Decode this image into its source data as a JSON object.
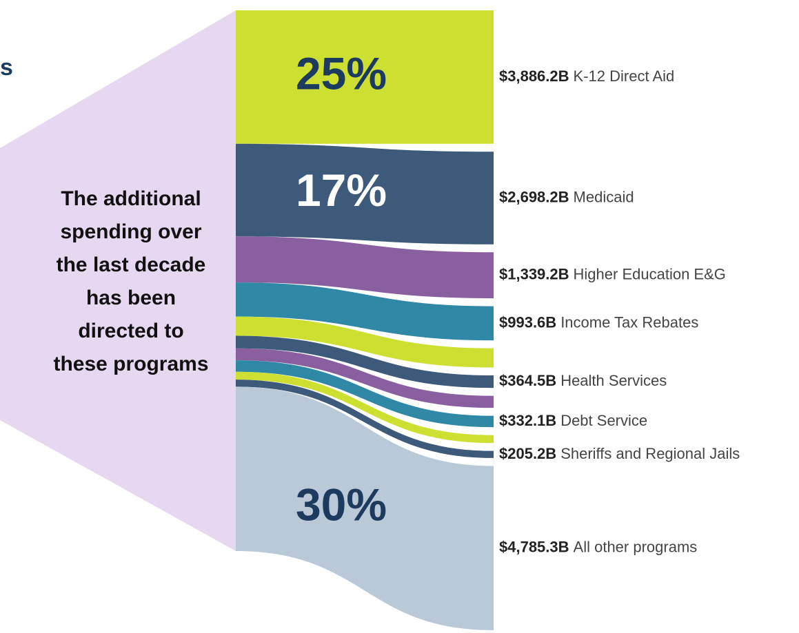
{
  "heading_fragment": "s",
  "side_text": [
    "The additional",
    "spending over",
    "the last decade",
    "has been",
    "directed to",
    "these programs"
  ],
  "chart_data": {
    "type": "sankey",
    "items": [
      {
        "name": "K-12 Direct Aid",
        "value": 3886.2,
        "value_label": "$3,886.2B",
        "color": "#cde031",
        "share": 25,
        "share_label": "25%"
      },
      {
        "name": "Medicaid",
        "value": 2698.2,
        "value_label": "$2,698.2B",
        "color": "#3d5a7a",
        "share": 17,
        "share_label": "17%"
      },
      {
        "name": "Higher Education E&G",
        "value": 1339.2,
        "value_label": "$1,339.2B",
        "color": "#8a5fa0"
      },
      {
        "name": "Income Tax Rebates",
        "value": 993.6,
        "value_label": "$993.6B",
        "color": "#2e88a6"
      },
      {
        "name": null,
        "value": 560,
        "value_label": null,
        "color": "#cde031"
      },
      {
        "name": "Health Services",
        "value": 364.5,
        "value_label": "$364.5B",
        "color": "#3d5a7a"
      },
      {
        "name": null,
        "value": 350,
        "value_label": null,
        "color": "#8a5fa0"
      },
      {
        "name": "Debt Service",
        "value": 332.1,
        "value_label": "$332.1B",
        "color": "#2e88a6"
      },
      {
        "name": null,
        "value": 230,
        "value_label": null,
        "color": "#cde031"
      },
      {
        "name": "Sheriffs and Regional Jails",
        "value": 205.2,
        "value_label": "$205.2B",
        "color": "#3d5a7a"
      },
      {
        "name": "All other programs",
        "value": 4785.3,
        "value_label": "$4,785.3B",
        "color": "#b9c9d8",
        "share": 30,
        "share_label": "30%"
      }
    ]
  }
}
